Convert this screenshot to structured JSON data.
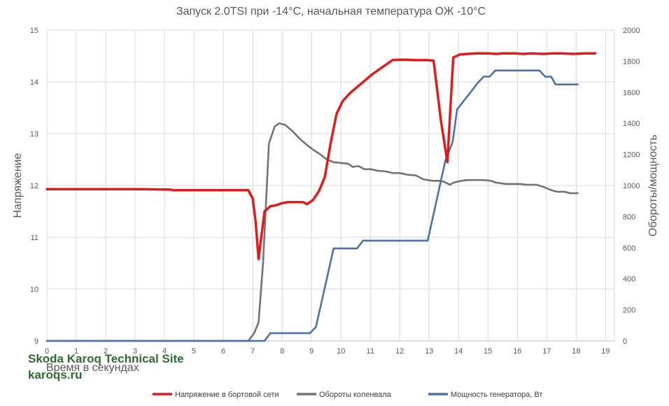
{
  "chart_data": {
    "type": "line",
    "title": "Запуск 2.0TSI при -14°C, начальная температура ОЖ -10°C",
    "xlabel": "Время в секундах",
    "ylabel_left": "Напряжение",
    "ylabel_right": "Обороты/мощность",
    "xlim": [
      0,
      19.3
    ],
    "xticks": [
      0,
      1,
      2,
      3,
      4,
      5,
      6,
      7,
      8,
      9,
      10,
      11,
      12,
      13,
      14,
      15,
      16,
      17,
      18,
      19
    ],
    "ylim_left": [
      9,
      15
    ],
    "yticks_left": [
      9,
      10,
      11,
      12,
      13,
      14,
      15
    ],
    "ylim_right": [
      0,
      2000
    ],
    "yticks_right": [
      0,
      200,
      400,
      600,
      800,
      1000,
      1200,
      1400,
      1600,
      1800,
      2000
    ],
    "grid": true,
    "legend_position": "bottom",
    "series": [
      {
        "name": "Напряжение в бортовой сети",
        "axis": "left",
        "color": "#e01b1b",
        "points": [
          [
            0,
            11.93
          ],
          [
            3.2,
            11.93
          ],
          [
            4.2,
            11.92
          ],
          [
            4.3,
            11.91
          ],
          [
            5.5,
            11.91
          ],
          [
            6.85,
            11.91
          ],
          [
            7.0,
            11.75
          ],
          [
            7.1,
            11.3
          ],
          [
            7.2,
            10.58
          ],
          [
            7.3,
            11.05
          ],
          [
            7.4,
            11.5
          ],
          [
            7.6,
            11.6
          ],
          [
            7.8,
            11.62
          ],
          [
            8.0,
            11.66
          ],
          [
            8.2,
            11.68
          ],
          [
            8.5,
            11.68
          ],
          [
            8.7,
            11.68
          ],
          [
            8.85,
            11.64
          ],
          [
            9.05,
            11.72
          ],
          [
            9.25,
            11.89
          ],
          [
            9.45,
            12.16
          ],
          [
            9.65,
            12.82
          ],
          [
            9.85,
            13.38
          ],
          [
            10.05,
            13.62
          ],
          [
            10.3,
            13.78
          ],
          [
            10.55,
            13.9
          ],
          [
            10.8,
            14.02
          ],
          [
            11.05,
            14.14
          ],
          [
            11.3,
            14.24
          ],
          [
            11.55,
            14.34
          ],
          [
            11.75,
            14.42
          ],
          [
            11.95,
            14.43
          ],
          [
            12.25,
            14.43
          ],
          [
            12.5,
            14.42
          ],
          [
            12.95,
            14.42
          ],
          [
            13.15,
            14.41
          ],
          [
            13.4,
            13.25
          ],
          [
            13.62,
            12.45
          ],
          [
            13.82,
            14.47
          ],
          [
            14.05,
            14.53
          ],
          [
            14.3,
            14.54
          ],
          [
            14.6,
            14.55
          ],
          [
            15.0,
            14.55
          ],
          [
            15.3,
            14.54
          ],
          [
            15.5,
            14.55
          ],
          [
            15.9,
            14.55
          ],
          [
            16.2,
            14.54
          ],
          [
            16.5,
            14.55
          ],
          [
            16.9,
            14.54
          ],
          [
            17.2,
            14.55
          ],
          [
            17.5,
            14.55
          ],
          [
            17.9,
            14.54
          ],
          [
            18.3,
            14.55
          ],
          [
            18.65,
            14.55
          ]
        ]
      },
      {
        "name": "Обороты коленвала",
        "axis": "right",
        "color": "#737373",
        "points": [
          [
            0,
            0
          ],
          [
            6.85,
            0
          ],
          [
            7.05,
            50
          ],
          [
            7.2,
            120
          ],
          [
            7.35,
            500
          ],
          [
            7.55,
            1270
          ],
          [
            7.75,
            1380
          ],
          [
            7.9,
            1400
          ],
          [
            8.1,
            1390
          ],
          [
            8.35,
            1350
          ],
          [
            8.6,
            1300
          ],
          [
            8.85,
            1260
          ],
          [
            9.05,
            1230
          ],
          [
            9.3,
            1200
          ],
          [
            9.5,
            1170
          ],
          [
            9.75,
            1150
          ],
          [
            10.0,
            1145
          ],
          [
            10.25,
            1140
          ],
          [
            10.4,
            1120
          ],
          [
            10.6,
            1125
          ],
          [
            10.8,
            1105
          ],
          [
            11.0,
            1105
          ],
          [
            11.25,
            1095
          ],
          [
            11.55,
            1090
          ],
          [
            11.75,
            1080
          ],
          [
            12.0,
            1080
          ],
          [
            12.25,
            1070
          ],
          [
            12.55,
            1065
          ],
          [
            12.8,
            1040
          ],
          [
            13.1,
            1030
          ],
          [
            13.35,
            1030
          ],
          [
            13.5,
            1025
          ],
          [
            13.7,
            1005
          ],
          [
            13.85,
            1020
          ],
          [
            14.1,
            1030
          ],
          [
            14.3,
            1035
          ],
          [
            14.55,
            1035
          ],
          [
            14.85,
            1035
          ],
          [
            15.1,
            1030
          ],
          [
            15.25,
            1020
          ],
          [
            15.6,
            1010
          ],
          [
            16.1,
            1010
          ],
          [
            16.3,
            1005
          ],
          [
            16.65,
            1005
          ],
          [
            16.9,
            990
          ],
          [
            17.15,
            970
          ],
          [
            17.35,
            960
          ],
          [
            17.6,
            960
          ],
          [
            17.8,
            950
          ],
          [
            18.05,
            950
          ]
        ]
      },
      {
        "name": "Мощность генератора, Вт",
        "axis": "right",
        "color": "#4a74a8",
        "points": [
          [
            0,
            0
          ],
          [
            7.4,
            0
          ],
          [
            7.6,
            50
          ],
          [
            8.5,
            50
          ],
          [
            8.95,
            50
          ],
          [
            9.15,
            90
          ],
          [
            9.4,
            300
          ],
          [
            9.75,
            595
          ],
          [
            10.1,
            595
          ],
          [
            10.55,
            595
          ],
          [
            10.75,
            645
          ],
          [
            11.65,
            645
          ],
          [
            12.3,
            645
          ],
          [
            12.95,
            645
          ],
          [
            13.55,
            1160
          ],
          [
            13.8,
            1280
          ],
          [
            13.95,
            1490
          ],
          [
            14.2,
            1550
          ],
          [
            14.45,
            1610
          ],
          [
            14.65,
            1660
          ],
          [
            14.85,
            1700
          ],
          [
            15.05,
            1700
          ],
          [
            15.25,
            1740
          ],
          [
            15.55,
            1740
          ],
          [
            15.85,
            1740
          ],
          [
            16.35,
            1740
          ],
          [
            16.55,
            1740
          ],
          [
            16.75,
            1740
          ],
          [
            16.95,
            1700
          ],
          [
            17.15,
            1700
          ],
          [
            17.3,
            1650
          ],
          [
            17.75,
            1650
          ],
          [
            18.05,
            1650
          ]
        ]
      }
    ]
  },
  "watermark": {
    "line1": "Skoda Karoq Technical Site",
    "line2": "karoqs.ru"
  }
}
